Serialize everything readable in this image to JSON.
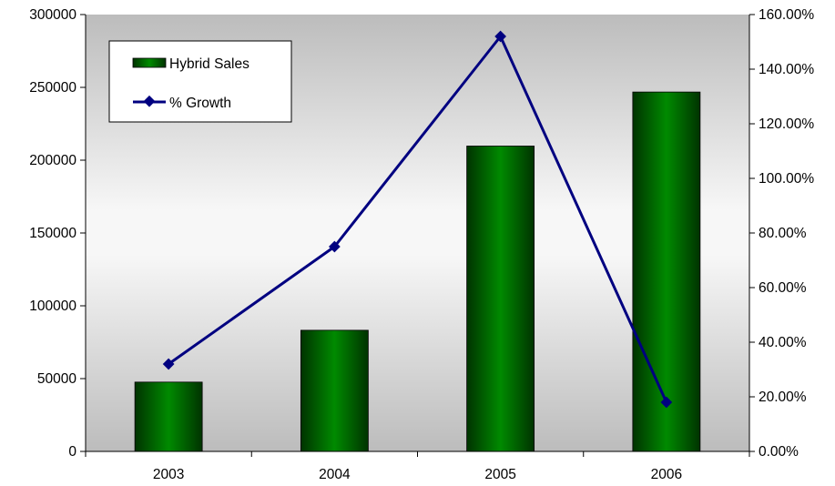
{
  "chart_data": {
    "type": "bar",
    "categories": [
      "2003",
      "2004",
      "2005",
      "2006"
    ],
    "series": [
      {
        "name": "Hybrid Sales",
        "kind": "bar",
        "axis": "left",
        "values": [
          47600,
          83200,
          209700,
          246800
        ],
        "color": "#007000"
      },
      {
        "name": "% Growth",
        "kind": "line",
        "axis": "right",
        "values": [
          32.0,
          75.0,
          152.0,
          18.0
        ],
        "color": "#000080"
      }
    ],
    "y_left": {
      "min": 0,
      "max": 300000,
      "ticks": [
        0,
        50000,
        100000,
        150000,
        200000,
        250000,
        300000
      ],
      "tick_labels": [
        "0",
        "50000",
        "100000",
        "150000",
        "200000",
        "250000",
        "300000"
      ]
    },
    "y_right": {
      "min": 0,
      "max": 160,
      "ticks": [
        0,
        20,
        40,
        60,
        80,
        100,
        120,
        140,
        160
      ],
      "tick_labels": [
        "0.00%",
        "20.00%",
        "40.00%",
        "60.00%",
        "80.00%",
        "100.00%",
        "120.00%",
        "140.00%",
        "160.00%"
      ]
    },
    "legend": {
      "position": "top-left",
      "items": [
        "Hybrid Sales",
        "% Growth"
      ]
    },
    "grid": false,
    "plot_background": "gradient-gray",
    "colors": {
      "bar": "#007000",
      "line": "#000080",
      "axis": "#000000"
    }
  }
}
